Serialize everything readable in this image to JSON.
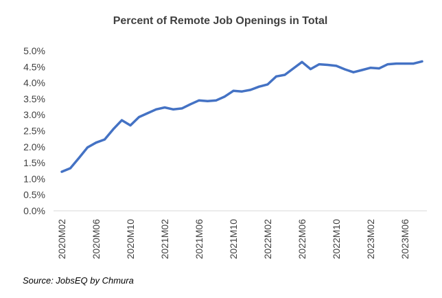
{
  "chart_data": {
    "type": "line",
    "title": "Percent of Remote Job Openings in Total",
    "source": "Source: JobsEQ by Chmura",
    "y_tick_labels": [
      "0.0%",
      "0.5%",
      "1.0%",
      "1.5%",
      "2.0%",
      "2.5%",
      "3.0%",
      "3.5%",
      "4.0%",
      "4.5%",
      "5.0%"
    ],
    "y_ticks": [
      0,
      0.5,
      1,
      1.5,
      2,
      2.5,
      3,
      3.5,
      4,
      4.5,
      5
    ],
    "ylim": [
      0,
      5.0
    ],
    "yunit": "%",
    "x_tick_labels": [
      "2020M02",
      "2020M06",
      "2020M10",
      "2021M02",
      "2021M06",
      "2021M10",
      "2022M02",
      "2022M06",
      "2022M10",
      "2023M02",
      "2023M06"
    ],
    "x": [
      "2020M02",
      "2020M03",
      "2020M04",
      "2020M05",
      "2020M06",
      "2020M07",
      "2020M08",
      "2020M09",
      "2020M10",
      "2020M11",
      "2020M12",
      "2021M01",
      "2021M02",
      "2021M03",
      "2021M04",
      "2021M05",
      "2021M06",
      "2021M07",
      "2021M08",
      "2021M09",
      "2021M10",
      "2021M11",
      "2021M12",
      "2022M01",
      "2022M02",
      "2022M03",
      "2022M04",
      "2022M05",
      "2022M06",
      "2022M07",
      "2022M08",
      "2022M09",
      "2022M10",
      "2022M11",
      "2022M12",
      "2023M01",
      "2023M02",
      "2023M03",
      "2023M04",
      "2023M05",
      "2023M06",
      "2023M07",
      "2023M08"
    ],
    "series": [
      {
        "values": [
          1.22,
          1.33,
          1.65,
          1.98,
          2.13,
          2.23,
          2.55,
          2.83,
          2.67,
          2.93,
          3.05,
          3.17,
          3.23,
          3.17,
          3.2,
          3.33,
          3.45,
          3.43,
          3.45,
          3.57,
          3.75,
          3.73,
          3.78,
          3.88,
          3.95,
          4.2,
          4.25,
          4.45,
          4.65,
          4.43,
          4.58,
          4.56,
          4.53,
          4.42,
          4.33,
          4.4,
          4.47,
          4.45,
          4.58,
          4.6,
          4.6,
          4.6,
          4.67
        ],
        "color": "#4472C4"
      }
    ],
    "grid": false
  }
}
